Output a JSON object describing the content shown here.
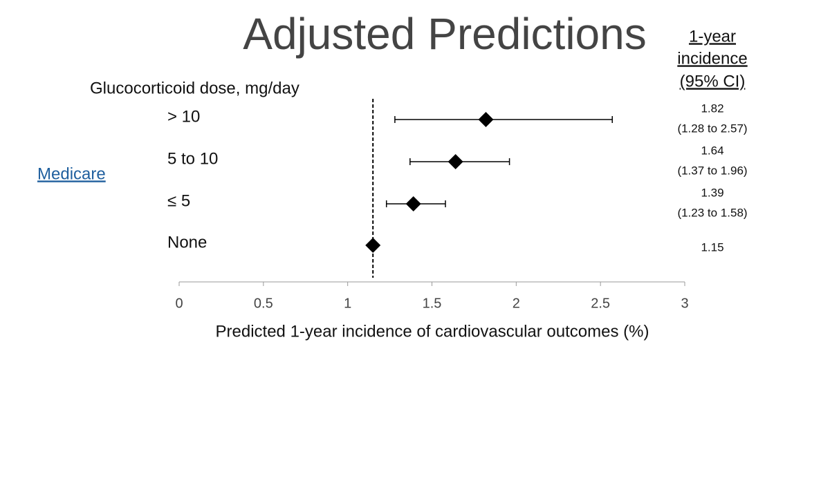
{
  "chart_data": {
    "type": "forest",
    "title": "Adjusted Predictions",
    "column_header": [
      "1-year",
      "incidence",
      "(95% CI)"
    ],
    "group_label": "Glucocorticoid dose, mg/day",
    "side_label": "Medicare",
    "categories": [
      "> 10",
      "5 to 10",
      "≤ 5",
      "None"
    ],
    "values": [
      1.82,
      1.64,
      1.39,
      1.15
    ],
    "lower": [
      1.28,
      1.37,
      1.23,
      null
    ],
    "upper": [
      2.57,
      1.96,
      1.58,
      null
    ],
    "ci_labels": [
      "(1.28 to 2.57)",
      "(1.37 to 1.96)",
      "(1.23 to 1.58)",
      null
    ],
    "x_label": "Predicted 1-year incidence of cardiovascular outcomes (%)",
    "xlim": [
      0,
      3
    ],
    "xticks": [
      0,
      0.5,
      1,
      1.5,
      2,
      2.5,
      3
    ],
    "color": "#000000"
  }
}
